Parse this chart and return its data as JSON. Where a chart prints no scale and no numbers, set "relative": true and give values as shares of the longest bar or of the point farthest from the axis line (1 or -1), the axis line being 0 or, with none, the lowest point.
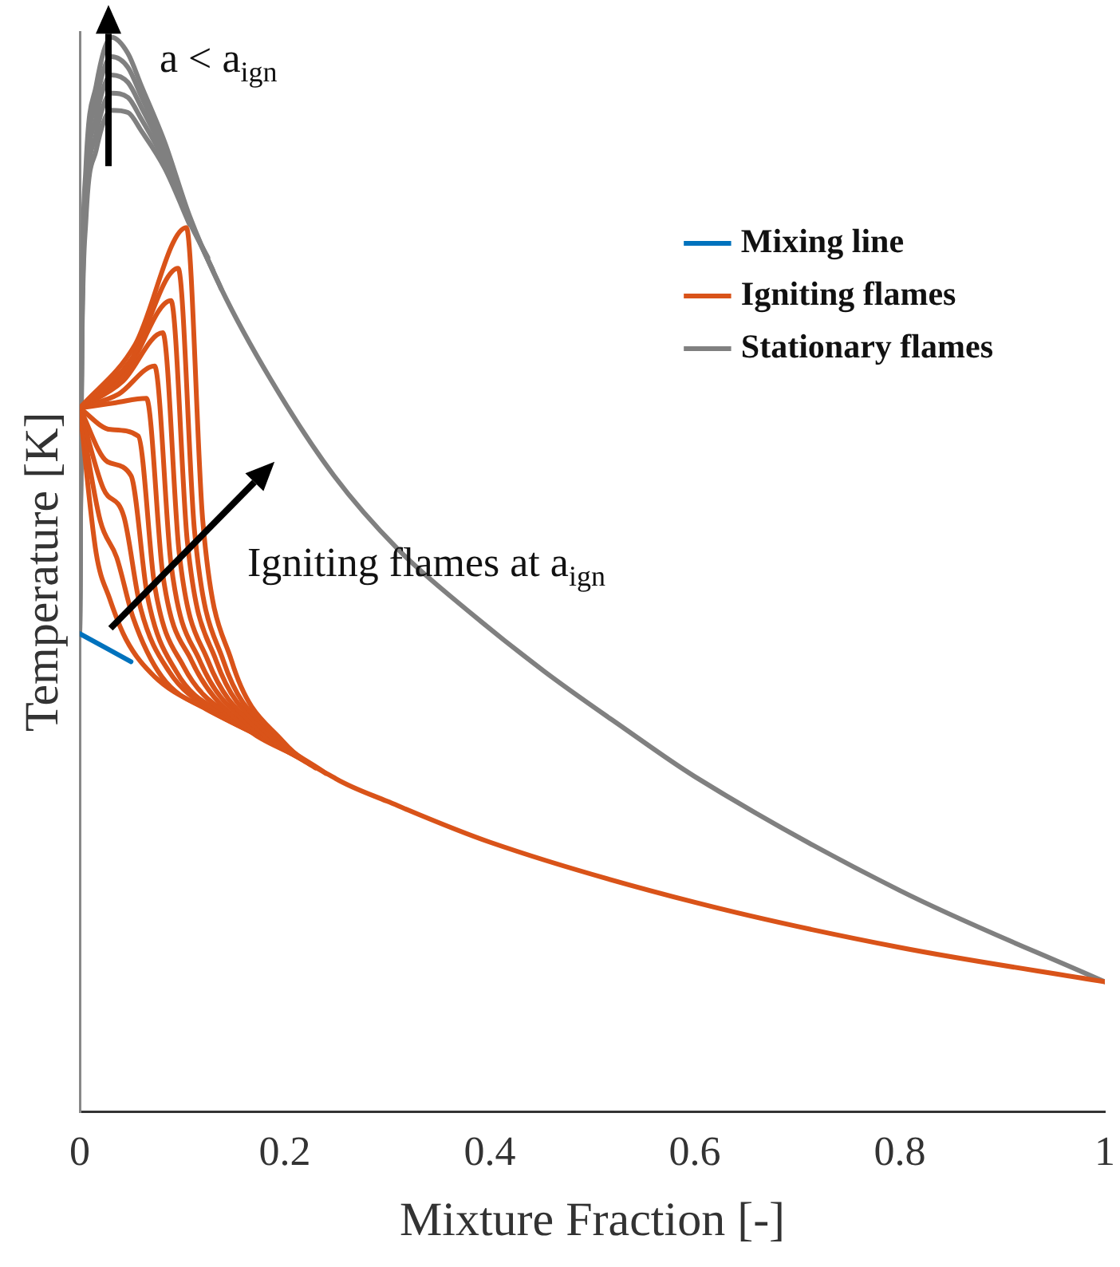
{
  "chart_data": {
    "type": "line",
    "relative": true,
    "xlabel": "Mixture Fraction [-]",
    "ylabel": "Temperature [K]",
    "xlim": [
      0,
      1
    ],
    "xticks": [
      0,
      0.2,
      0.4,
      0.6,
      0.8,
      1
    ],
    "grid": false,
    "legend": "top right",
    "marker": "none",
    "line_style": "solid",
    "annotations": [
      "a < a$_{ign}$",
      "Igniting flames at a$_{ign}$"
    ],
    "series": [
      {
        "name": "Mixing line",
        "color": "#0072bd",
        "x": [
          0,
          0.05
        ],
        "values": [
          0.445,
          0.419
        ]
      },
      {
        "name": "Igniting flames",
        "color": "#d95319",
        "x": [
          0,
          0.054,
          0.104,
          0.12,
          0.148,
          0.198,
          0.25,
          0.3,
          0.4,
          0.6,
          0.8,
          1
        ],
        "values": [
          0.655,
          0.714,
          0.823,
          0.55,
          0.42,
          0.345,
          0.31,
          0.289,
          0.251,
          0.195,
          0.153,
          0.121
        ]
      },
      {
        "color": "#d95319",
        "x": [
          0,
          0.05,
          0.096,
          0.112,
          0.14,
          0.19,
          0.24
        ],
        "values": [
          0.655,
          0.7,
          0.785,
          0.54,
          0.42,
          0.35,
          0.315
        ]
      },
      {
        "color": "#d95319",
        "x": [
          0,
          0.046,
          0.089,
          0.105,
          0.133,
          0.183,
          0.23
        ],
        "values": [
          0.655,
          0.69,
          0.755,
          0.53,
          0.42,
          0.352,
          0.32
        ]
      },
      {
        "color": "#d95319",
        "x": [
          0,
          0.042,
          0.081,
          0.097,
          0.125,
          0.175,
          0.225
        ],
        "values": [
          0.655,
          0.68,
          0.725,
          0.52,
          0.42,
          0.355,
          0.323
        ]
      },
      {
        "color": "#d95319",
        "x": [
          0,
          0.038,
          0.073,
          0.089,
          0.117,
          0.167,
          0.22
        ],
        "values": [
          0.655,
          0.668,
          0.694,
          0.51,
          0.42,
          0.358,
          0.326
        ]
      },
      {
        "color": "#d95319",
        "x": [
          0,
          0.035,
          0.065,
          0.081,
          0.109,
          0.159,
          0.215
        ],
        "values": [
          0.655,
          0.66,
          0.664,
          0.5,
          0.42,
          0.36,
          0.329
        ]
      },
      {
        "color": "#d95319",
        "x": [
          0,
          0.03,
          0.057,
          0.073,
          0.101,
          0.151,
          0.21
        ],
        "values": [
          0.655,
          0.635,
          0.629,
          0.49,
          0.415,
          0.365,
          0.332
        ]
      },
      {
        "color": "#d95319",
        "x": [
          0,
          0.027,
          0.05,
          0.066,
          0.094,
          0.144,
          0.205
        ],
        "values": [
          0.655,
          0.605,
          0.592,
          0.48,
          0.41,
          0.368,
          0.335
        ]
      },
      {
        "color": "#d95319",
        "x": [
          0,
          0.023,
          0.043,
          0.059,
          0.087,
          0.137,
          0.2
        ],
        "values": [
          0.655,
          0.58,
          0.554,
          0.47,
          0.41,
          0.37,
          0.338
        ]
      },
      {
        "color": "#d95319",
        "x": [
          0,
          0.02,
          0.036,
          0.052,
          0.08,
          0.13,
          0.195
        ],
        "values": [
          0.655,
          0.55,
          0.516,
          0.46,
          0.405,
          0.372,
          0.341
        ]
      },
      {
        "color": "#d95319",
        "x": [
          0,
          0.016,
          0.029,
          0.045,
          0.073,
          0.123,
          0.19
        ],
        "values": [
          0.655,
          0.52,
          0.478,
          0.44,
          0.405,
          0.375,
          0.344
        ]
      },
      {
        "name": "Stationary flames",
        "color": "#808080",
        "x": [
          0,
          0.002,
          0.006,
          0.016,
          0.031,
          0.047,
          0.06,
          0.083,
          0.107,
          0.138,
          0.186,
          0.248,
          0.311,
          0.374,
          0.453,
          0.531,
          0.6,
          0.8,
          1
        ],
        "values": [
          0.445,
          0.743,
          0.879,
          0.955,
          1.0,
          0.985,
          0.955,
          0.902,
          0.834,
          0.766,
          0.682,
          0.592,
          0.523,
          0.47,
          0.41,
          0.357,
          0.312,
          0.206,
          0.121
        ]
      },
      {
        "color": "#808080",
        "x": [
          0,
          0.002,
          0.006,
          0.016,
          0.031,
          0.047,
          0.06,
          0.083,
          0.107,
          0.138
        ],
        "values": [
          0.445,
          0.735,
          0.868,
          0.94,
          0.982,
          0.972,
          0.945,
          0.896,
          0.832,
          0.766
        ]
      },
      {
        "color": "#808080",
        "x": [
          0,
          0.002,
          0.006,
          0.016,
          0.031,
          0.047,
          0.06,
          0.083,
          0.107,
          0.13
        ],
        "values": [
          0.445,
          0.725,
          0.855,
          0.925,
          0.965,
          0.958,
          0.935,
          0.89,
          0.83,
          0.783
        ]
      },
      {
        "color": "#808080",
        "x": [
          0,
          0.002,
          0.006,
          0.016,
          0.031,
          0.047,
          0.06,
          0.083,
          0.107,
          0.125
        ],
        "values": [
          0.445,
          0.715,
          0.842,
          0.91,
          0.948,
          0.944,
          0.924,
          0.884,
          0.828,
          0.795
        ]
      },
      {
        "color": "#808080",
        "x": [
          0,
          0.002,
          0.006,
          0.016,
          0.031,
          0.047,
          0.06,
          0.083,
          0.107
        ],
        "values": [
          0.445,
          0.705,
          0.83,
          0.895,
          0.932,
          0.93,
          0.913,
          0.878,
          0.826
        ]
      }
    ]
  }
}
